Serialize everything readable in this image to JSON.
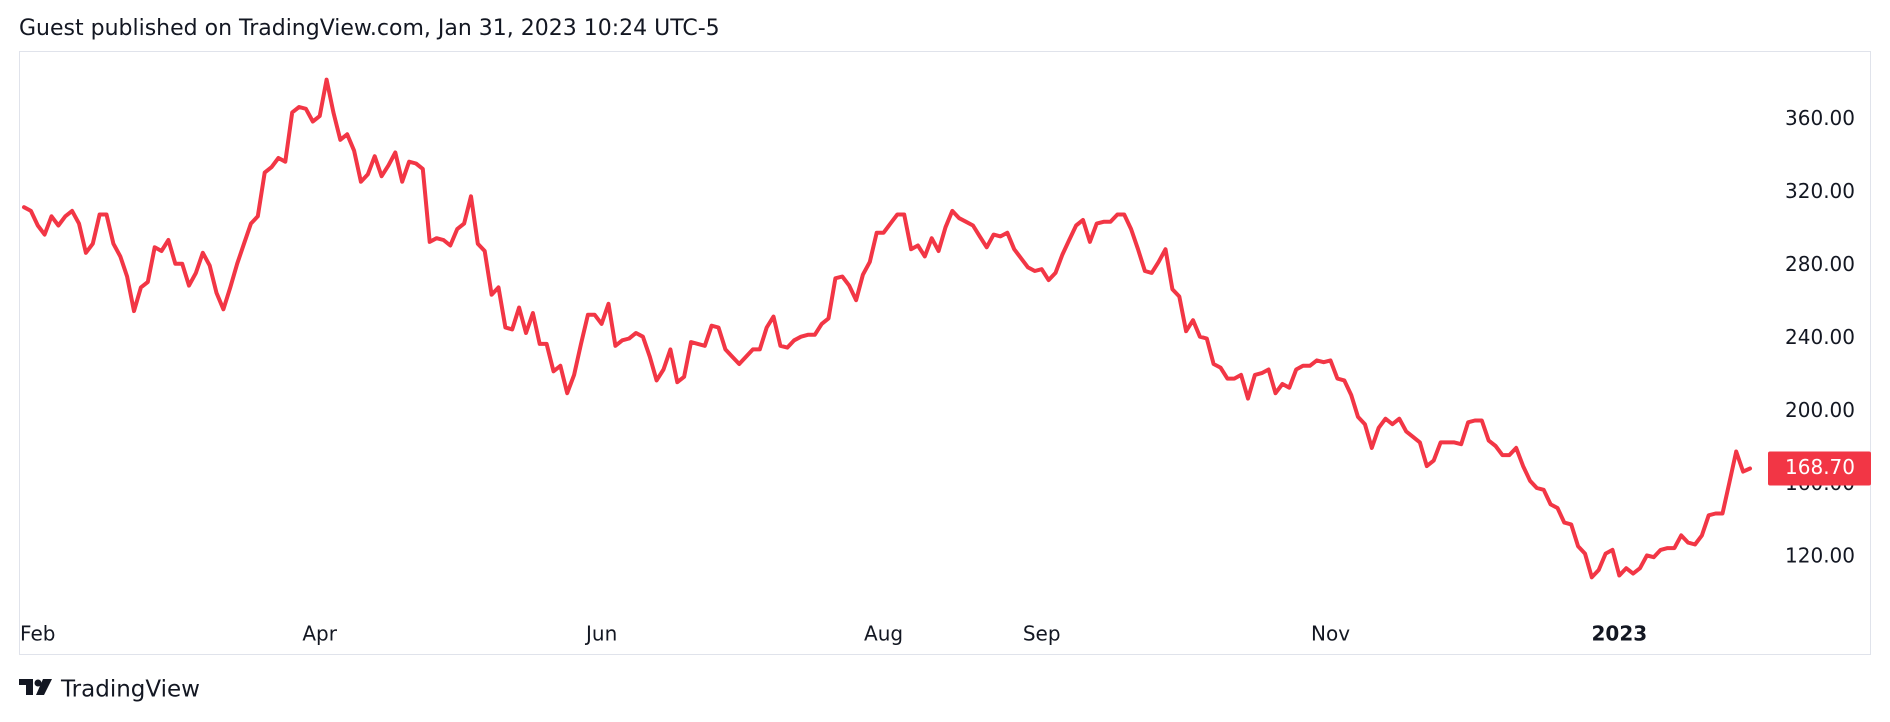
{
  "header": {
    "text": "Guest published on TradingView.com, Jan 31, 2023 10:24 UTC-5"
  },
  "footer": {
    "brand": "TradingView"
  },
  "chart_data": {
    "type": "line",
    "categories": [
      null,
      null,
      "Feb",
      null,
      null,
      null,
      null,
      null,
      null,
      null,
      null,
      null,
      null,
      null,
      null,
      null,
      null,
      null,
      null,
      null,
      null,
      null,
      null,
      null,
      null,
      null,
      null,
      null,
      null,
      null,
      null,
      null,
      null,
      null,
      null,
      null,
      null,
      null,
      null,
      null,
      null,
      null,
      null,
      "Apr",
      null,
      null,
      null,
      null,
      null,
      null,
      null,
      null,
      null,
      null,
      null,
      null,
      null,
      null,
      null,
      null,
      null,
      null,
      null,
      null,
      null,
      null,
      null,
      null,
      null,
      null,
      null,
      null,
      null,
      null,
      null,
      null,
      null,
      null,
      null,
      null,
      null,
      null,
      null,
      null,
      "Jun",
      null,
      null,
      null,
      null,
      null,
      null,
      null,
      null,
      null,
      null,
      null,
      null,
      null,
      null,
      null,
      null,
      null,
      null,
      null,
      null,
      null,
      null,
      null,
      null,
      null,
      null,
      null,
      null,
      null,
      null,
      null,
      null,
      null,
      null,
      null,
      null,
      null,
      null,
      null,
      null,
      "Aug",
      null,
      null,
      null,
      null,
      null,
      null,
      null,
      null,
      null,
      null,
      null,
      null,
      null,
      null,
      null,
      null,
      null,
      null,
      null,
      null,
      null,
      null,
      "Sep",
      null,
      null,
      null,
      null,
      null,
      null,
      null,
      null,
      null,
      null,
      null,
      null,
      null,
      null,
      null,
      null,
      null,
      null,
      null,
      null,
      null,
      null,
      null,
      null,
      null,
      null,
      null,
      null,
      null,
      null,
      null,
      null,
      null,
      null,
      null,
      null,
      null,
      null,
      null,
      null,
      null,
      "Nov",
      null,
      null,
      null,
      null,
      null,
      null,
      null,
      null,
      null,
      null,
      null,
      null,
      null,
      null,
      null,
      null,
      null,
      null,
      null,
      null,
      null,
      null,
      null,
      null,
      null,
      null,
      null,
      null,
      null,
      null,
      null,
      null,
      null,
      null,
      null,
      null,
      null,
      null,
      null,
      null,
      null,
      "2023",
      null,
      null,
      null,
      null,
      null,
      null,
      null,
      null,
      null,
      null,
      null,
      null,
      null,
      null,
      null,
      null,
      null,
      null,
      null
    ],
    "series": [
      {
        "color": "#f23645",
        "values": [
          312,
          310,
          302,
          297,
          307,
          302,
          307,
          310,
          303,
          287,
          292,
          308,
          308,
          292,
          285,
          274,
          255,
          268,
          271,
          290,
          288,
          294,
          281,
          281,
          269,
          276,
          287,
          280,
          265,
          256,
          268,
          281,
          292,
          303,
          307,
          331,
          334,
          339,
          337,
          364,
          367,
          366,
          359,
          362,
          382,
          364,
          349,
          352,
          343,
          326,
          330,
          340,
          329,
          335,
          342,
          326,
          337,
          336,
          333,
          293,
          295,
          294,
          291,
          300,
          303,
          318,
          292,
          288,
          264,
          268,
          246,
          245,
          257,
          243,
          254,
          237,
          237,
          222,
          225,
          210,
          220,
          237,
          253,
          253,
          248,
          259,
          236,
          239,
          240,
          243,
          241,
          230,
          217,
          223,
          234,
          216,
          219,
          238,
          237,
          236,
          247,
          246,
          234,
          230,
          226,
          230,
          234,
          234,
          246,
          252,
          236,
          235,
          239,
          241,
          242,
          242,
          248,
          251,
          273,
          274,
          269,
          261,
          275,
          282,
          298,
          298,
          303,
          308,
          308,
          289,
          291,
          285,
          295,
          288,
          301,
          310,
          306,
          304,
          302,
          296,
          290,
          297,
          296,
          298,
          289,
          284,
          279,
          277,
          278,
          272,
          276,
          286,
          294,
          302,
          305,
          293,
          303,
          304,
          304,
          308,
          308,
          300,
          289,
          277,
          276,
          282,
          289,
          267,
          263,
          244,
          250,
          241,
          240,
          226,
          224,
          218,
          218,
          220,
          207,
          220,
          221,
          223,
          210,
          215,
          213,
          223,
          225,
          225,
          228,
          227,
          228,
          218,
          217,
          209,
          197,
          193,
          180,
          191,
          196,
          193,
          196,
          189,
          186,
          183,
          170,
          173,
          183,
          183,
          183,
          182,
          194,
          195,
          195,
          184,
          181,
          176,
          176,
          180,
          170,
          162,
          158,
          157,
          149,
          147,
          139,
          138,
          126,
          122,
          109,
          113,
          122,
          124,
          110,
          114,
          111,
          114,
          121,
          120,
          124,
          125,
          125,
          132,
          128,
          127,
          132,
          143,
          144,
          144,
          161,
          178,
          167,
          168.7
        ]
      }
    ],
    "last_price": {
      "value": 168.7,
      "label": "168.70"
    },
    "ylim": [
      91.6,
      397.7
    ],
    "yticks": [
      {
        "value": 120,
        "label": "120.00"
      },
      {
        "value": 160,
        "label": "160.00"
      },
      {
        "value": 200,
        "label": "200.00"
      },
      {
        "value": 240,
        "label": "240.00"
      },
      {
        "value": 280,
        "label": "280.00"
      },
      {
        "value": 320,
        "label": "320.00"
      },
      {
        "value": 360,
        "label": "360.00"
      }
    ],
    "grid": false
  }
}
